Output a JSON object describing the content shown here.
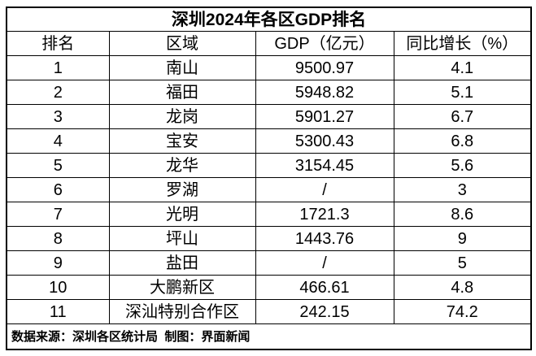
{
  "page": {
    "background_color": "#ffffff",
    "border_color": "#000000",
    "text_color": "#000000"
  },
  "title": "深圳2024年各区GDP排名",
  "table": {
    "headers": [
      "排名",
      "区域",
      "GDP（亿元）",
      "同比增长（%）"
    ],
    "rows": [
      [
        "1",
        "南山",
        "9500.97",
        "4.1"
      ],
      [
        "2",
        "福田",
        "5948.82",
        "5.1"
      ],
      [
        "3",
        "龙岗",
        "5901.27",
        "6.7"
      ],
      [
        "4",
        "宝安",
        "5300.43",
        "6.8"
      ],
      [
        "5",
        "龙华",
        "3154.45",
        "5.6"
      ],
      [
        "6",
        "罗湖",
        "/",
        "3"
      ],
      [
        "7",
        "光明",
        "1721.3",
        "8.6"
      ],
      [
        "8",
        "坪山",
        "1443.76",
        "9"
      ],
      [
        "9",
        "盐田",
        "/",
        "5"
      ],
      [
        "10",
        "大鹏新区",
        "466.61",
        "4.8"
      ],
      [
        "11",
        "深汕特别合作区",
        "242.15",
        "74.2"
      ]
    ]
  },
  "footer": {
    "text": "数据来源：深圳各区统计局  制图：界面新闻"
  },
  "chart_data": {
    "type": "table",
    "title": "深圳2024年各区GDP排名",
    "columns": [
      "排名",
      "区域",
      "GDP（亿元）",
      "同比增长（%）"
    ],
    "categories": [
      "南山",
      "福田",
      "龙岗",
      "宝安",
      "龙华",
      "罗湖",
      "光明",
      "坪山",
      "盐田",
      "大鹏新区",
      "深汕特别合作区"
    ],
    "series": [
      {
        "name": "GDP（亿元）",
        "values": [
          9500.97,
          5948.82,
          5901.27,
          5300.43,
          3154.45,
          "/",
          1721.3,
          1443.76,
          "/",
          466.61,
          242.15
        ]
      },
      {
        "name": "同比增长（%）",
        "values": [
          4.1,
          5.1,
          6.7,
          6.8,
          5.6,
          3,
          8.6,
          9,
          5,
          4.8,
          74.2
        ]
      }
    ],
    "rank": [
      1,
      2,
      3,
      4,
      5,
      6,
      7,
      8,
      9,
      10,
      11
    ],
    "source_note": "数据来源：深圳各区统计局  制图：界面新闻"
  }
}
